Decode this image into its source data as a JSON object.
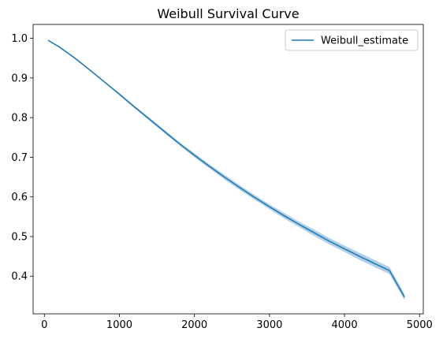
{
  "chart_data": {
    "type": "line",
    "title": "Weibull Survival Curve",
    "xlabel": "",
    "ylabel": "",
    "xlim": [
      -150,
      5050
    ],
    "ylim": [
      0.305,
      1.035
    ],
    "xticks": [
      0,
      1000,
      2000,
      3000,
      4000,
      5000
    ],
    "yticks": [
      0.4,
      0.5,
      0.6,
      0.7,
      0.8,
      0.9,
      1.0
    ],
    "xtick_labels": [
      "0",
      "1000",
      "2000",
      "3000",
      "4000",
      "5000"
    ],
    "ytick_labels": [
      "0.4",
      "0.5",
      "0.6",
      "0.7",
      "0.8",
      "0.9",
      "1.0"
    ],
    "grid": false,
    "legend": {
      "position": "top-right"
    },
    "series": [
      {
        "name": "Weibull_estimate",
        "color": "#1f77b4",
        "band_color": "#1f77b4",
        "x": [
          50,
          200,
          400,
          600,
          800,
          1000,
          1200,
          1400,
          1600,
          1800,
          2000,
          2200,
          2400,
          2600,
          2800,
          3000,
          3200,
          3400,
          3600,
          3800,
          4000,
          4200,
          4400,
          4600,
          4800
        ],
        "y": [
          0.995,
          0.978,
          0.951,
          0.921,
          0.89,
          0.859,
          0.827,
          0.796,
          0.765,
          0.734,
          0.705,
          0.677,
          0.65,
          0.624,
          0.599,
          0.575,
          0.552,
          0.53,
          0.509,
          0.488,
          0.469,
          0.45,
          0.432,
          0.414,
          0.347
        ],
        "lower": [
          0.994,
          0.976,
          0.949,
          0.919,
          0.888,
          0.856,
          0.824,
          0.792,
          0.761,
          0.73,
          0.7,
          0.672,
          0.644,
          0.618,
          0.593,
          0.569,
          0.545,
          0.523,
          0.501,
          0.48,
          0.461,
          0.441,
          0.423,
          0.405,
          0.339
        ],
        "upper": [
          0.996,
          0.98,
          0.953,
          0.923,
          0.892,
          0.862,
          0.83,
          0.8,
          0.769,
          0.738,
          0.71,
          0.682,
          0.656,
          0.63,
          0.605,
          0.581,
          0.559,
          0.537,
          0.517,
          0.496,
          0.477,
          0.459,
          0.441,
          0.423,
          0.355
        ]
      }
    ]
  }
}
